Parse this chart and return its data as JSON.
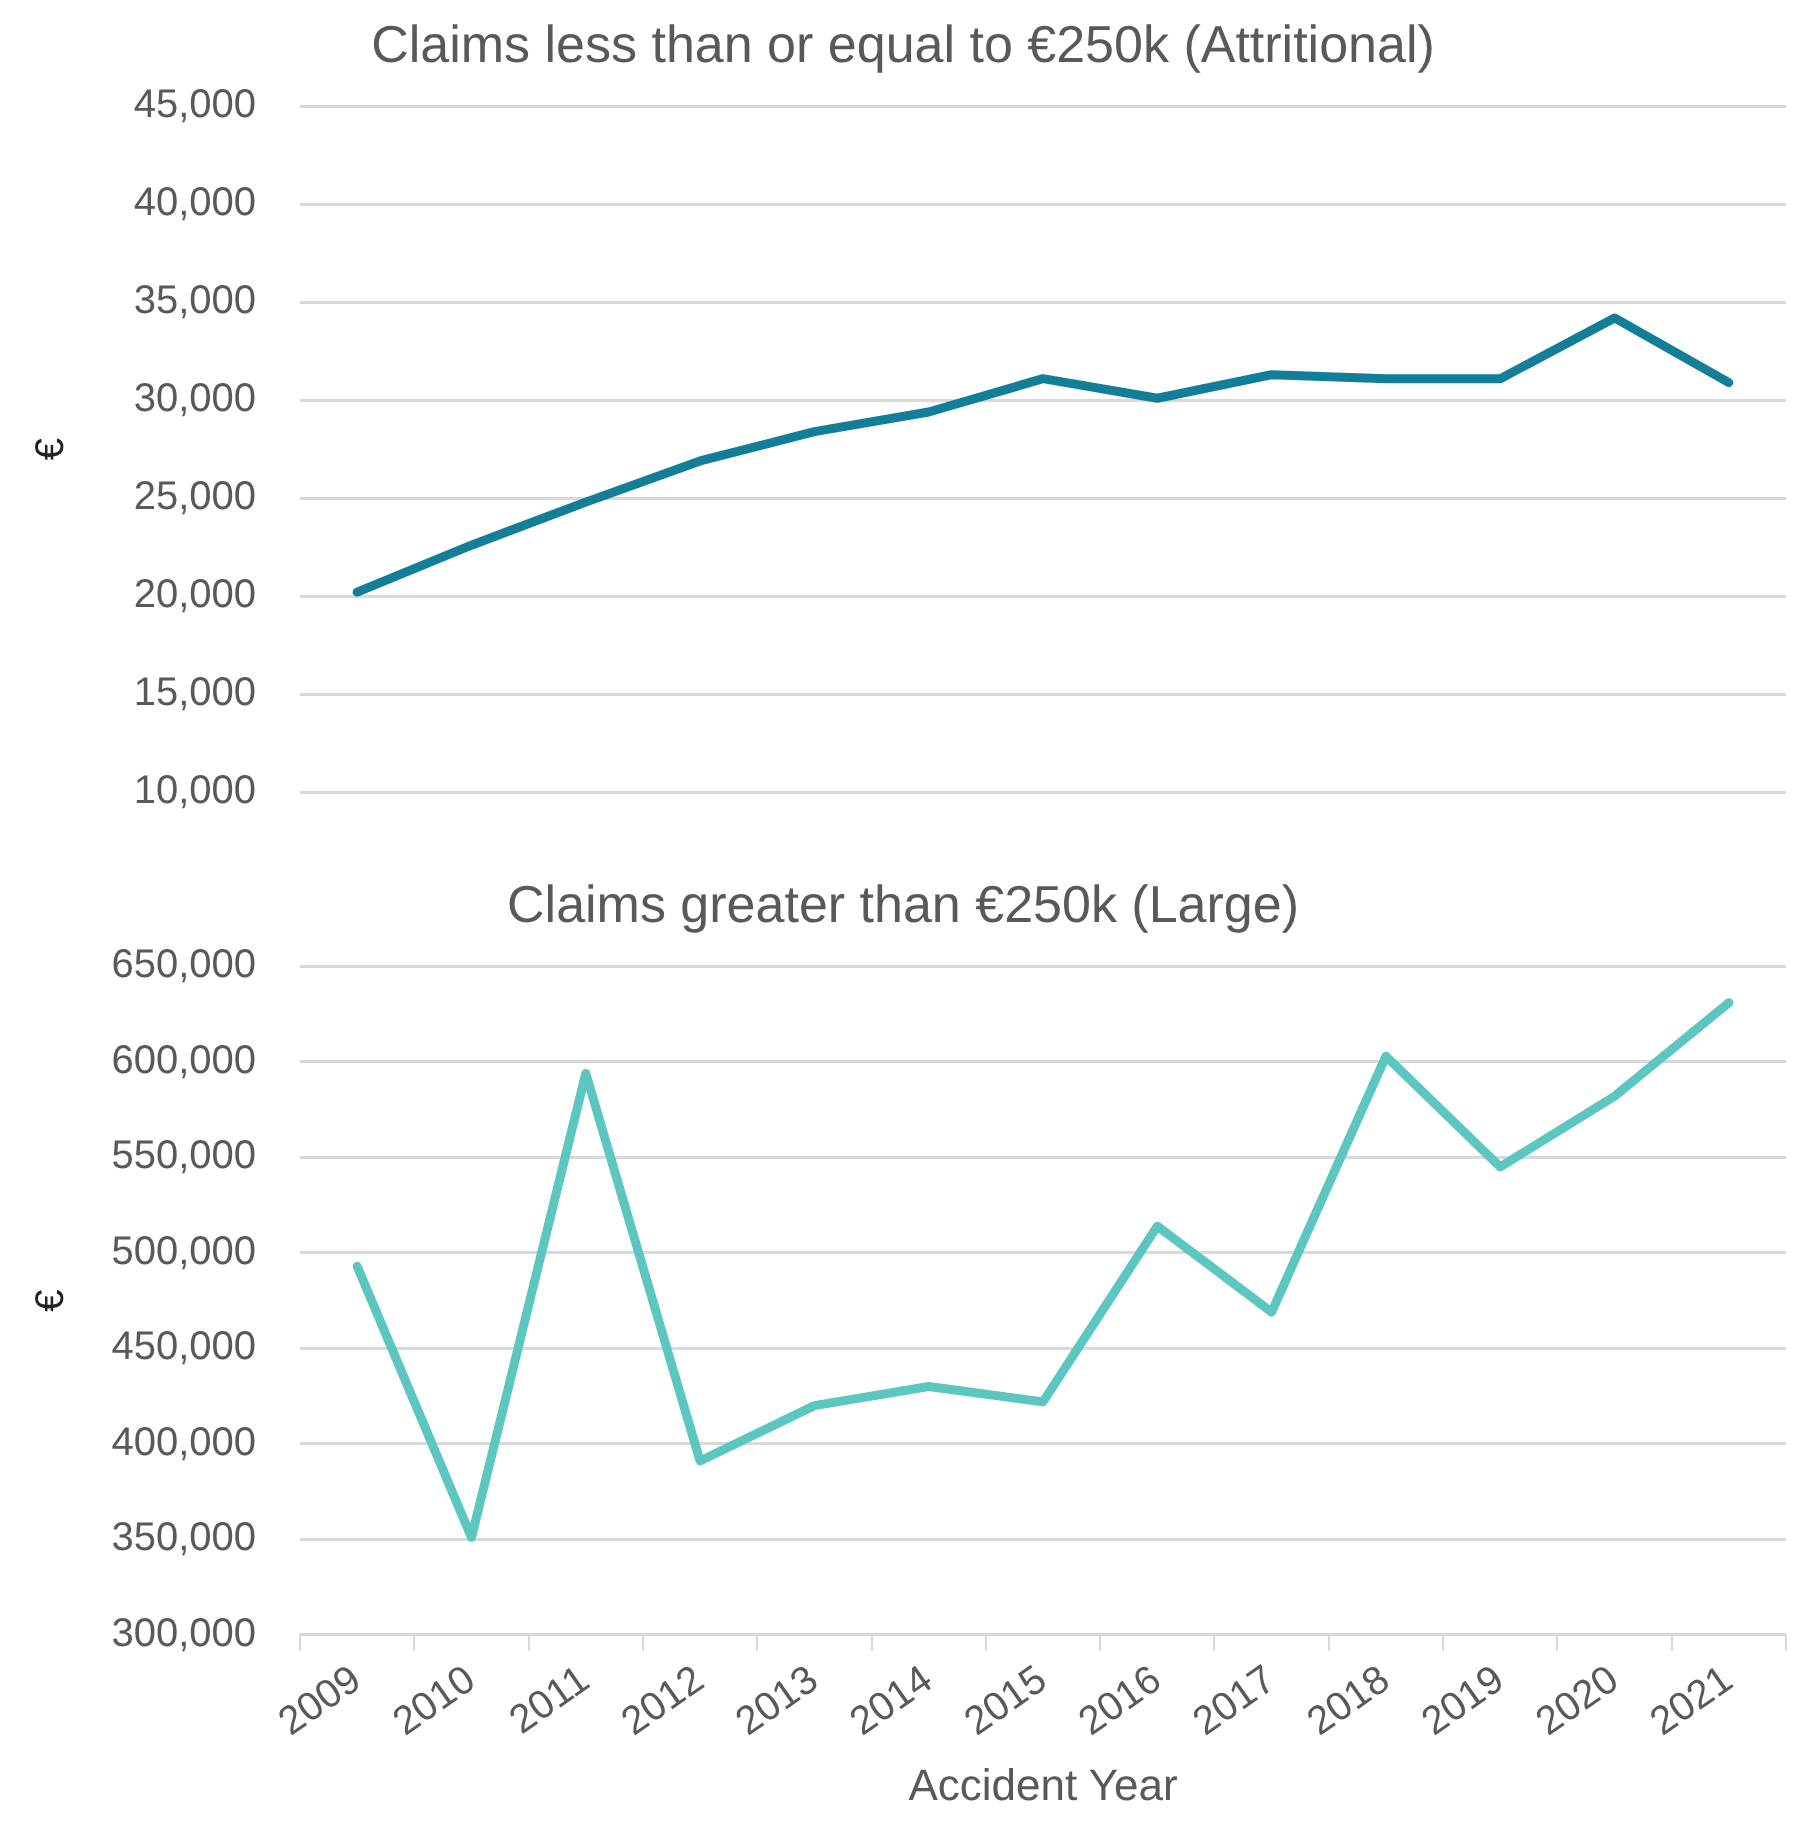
{
  "chart_data": [
    {
      "type": "line",
      "title": "Claims less than or equal to €250k (Attritional)",
      "ylabel": "€",
      "categories": [
        "2009",
        "2010",
        "2011",
        "2012",
        "2013",
        "2014",
        "2015",
        "2016",
        "2017",
        "2018",
        "2019",
        "2020",
        "2021"
      ],
      "series": [
        {
          "color": "#127e97",
          "values": [
            20200,
            22600,
            24800,
            26900,
            28400,
            29400,
            31100,
            30100,
            31300,
            31100,
            31100,
            34200,
            30900
          ]
        }
      ],
      "ylim": [
        10000,
        45000
      ],
      "yticks": [
        {
          "value": 10000,
          "label": "10,000"
        },
        {
          "value": 15000,
          "label": "15,000"
        },
        {
          "value": 20000,
          "label": "20,000"
        },
        {
          "value": 25000,
          "label": "25,000"
        },
        {
          "value": 30000,
          "label": "30,000"
        },
        {
          "value": 35000,
          "label": "35,000"
        },
        {
          "value": 40000,
          "label": "40,000"
        },
        {
          "value": 45000,
          "label": "45,000"
        }
      ],
      "grid": "y",
      "legend": false,
      "marker": "none",
      "line_style": "solid",
      "tick_labels": "y"
    },
    {
      "type": "line",
      "title": "Claims greater than €250k (Large)",
      "xlabel": "Accident Year",
      "ylabel": "€",
      "categories": [
        "2009",
        "2010",
        "2011",
        "2012",
        "2013",
        "2014",
        "2015",
        "2016",
        "2017",
        "2018",
        "2019",
        "2020",
        "2021"
      ],
      "series": [
        {
          "color": "#5cc6c0",
          "values": [
            493000,
            351000,
            594000,
            391000,
            420000,
            430000,
            422000,
            514000,
            469000,
            603000,
            545000,
            582000,
            631000
          ]
        }
      ],
      "ylim": [
        300000,
        650000
      ],
      "yticks": [
        {
          "value": 300000,
          "label": "300,000"
        },
        {
          "value": 350000,
          "label": "350,000"
        },
        {
          "value": 400000,
          "label": "400,000"
        },
        {
          "value": 450000,
          "label": "450,000"
        },
        {
          "value": 500000,
          "label": "500,000"
        },
        {
          "value": 550000,
          "label": "550,000"
        },
        {
          "value": 600000,
          "label": "600,000"
        },
        {
          "value": 650000,
          "label": "650,000"
        }
      ],
      "grid": "y",
      "legend": false,
      "marker": "none",
      "line_style": "solid"
    }
  ]
}
